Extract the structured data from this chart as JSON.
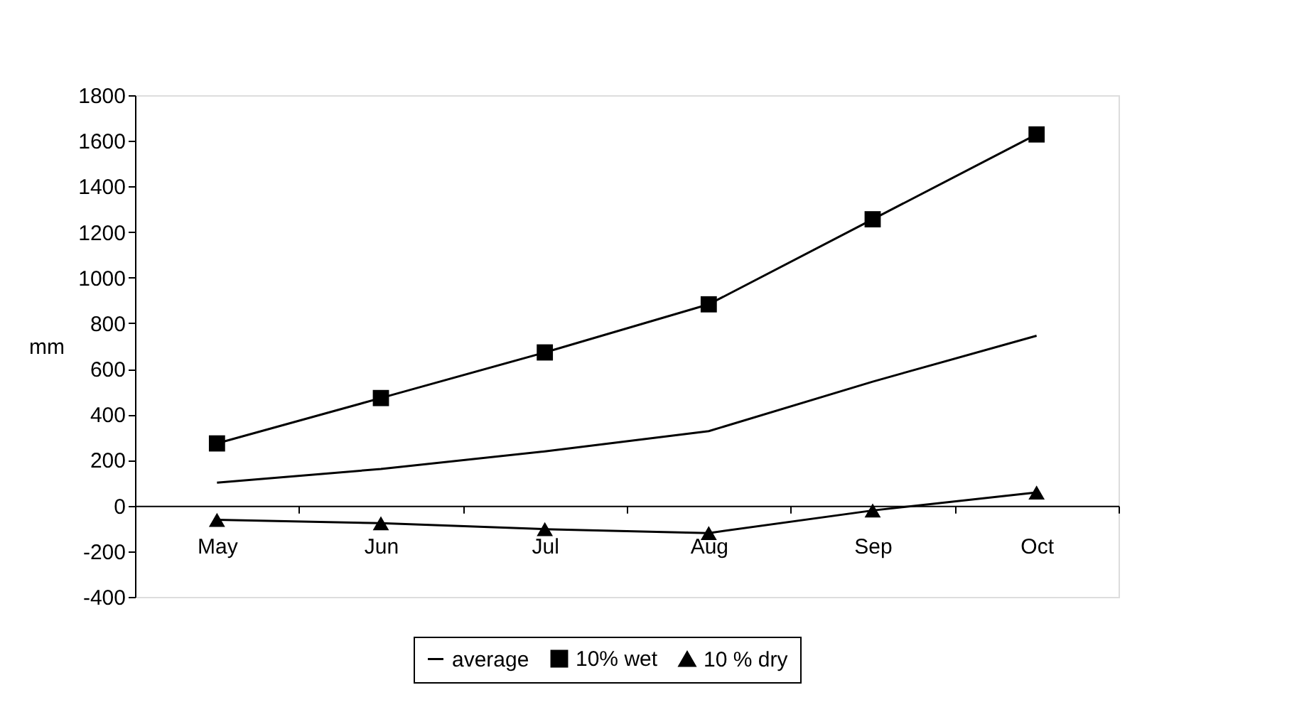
{
  "chart_data": {
    "type": "line",
    "ylabel": "mm",
    "categories": [
      "May",
      "Jun",
      "Jul",
      "Aug",
      "Sep",
      "Oct"
    ],
    "series": [
      {
        "name": "average",
        "color": "#000000",
        "marker": "none",
        "values": [
          101,
          161,
          238,
          327,
          544,
          745
        ]
      },
      {
        "name": "10% wet",
        "color": "#000000",
        "marker": "square",
        "values": [
          273,
          472,
          672,
          883,
          1256,
          1628
        ]
      },
      {
        "name": "10 % dry",
        "color": "#000000",
        "marker": "triangle",
        "values": [
          -62,
          -77,
          -103,
          -120,
          -21,
          58
        ]
      }
    ],
    "ylim": [
      -400,
      1800
    ],
    "yticks": [
      -400,
      -200,
      0,
      200,
      400,
      600,
      800,
      1000,
      1200,
      1400,
      1600,
      1800
    ],
    "grid": false,
    "legend": "bottom",
    "line_style": "solid"
  }
}
